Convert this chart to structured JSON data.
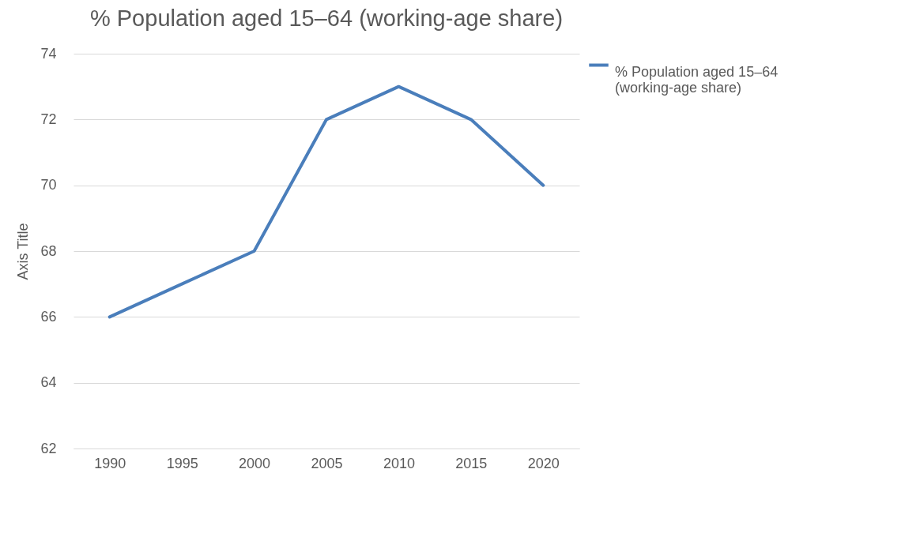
{
  "chart_data": {
    "type": "line",
    "title": "% Population aged 15–64 (working-age share)",
    "ylabel": "Axis Title",
    "categories": [
      "1990",
      "1995",
      "2000",
      "2005",
      "2010",
      "2015",
      "2020"
    ],
    "series": [
      {
        "name": "% Population aged 15–64 (working-age share)",
        "color": "#4a7ebb",
        "values": [
          66,
          67,
          68,
          72,
          73,
          72,
          70
        ]
      }
    ],
    "ylim": [
      62,
      74
    ],
    "yticks": [
      62,
      64,
      66,
      68,
      70,
      72,
      74
    ],
    "grid": "y",
    "legend": "right",
    "marker": "none",
    "line_style": "solid"
  }
}
